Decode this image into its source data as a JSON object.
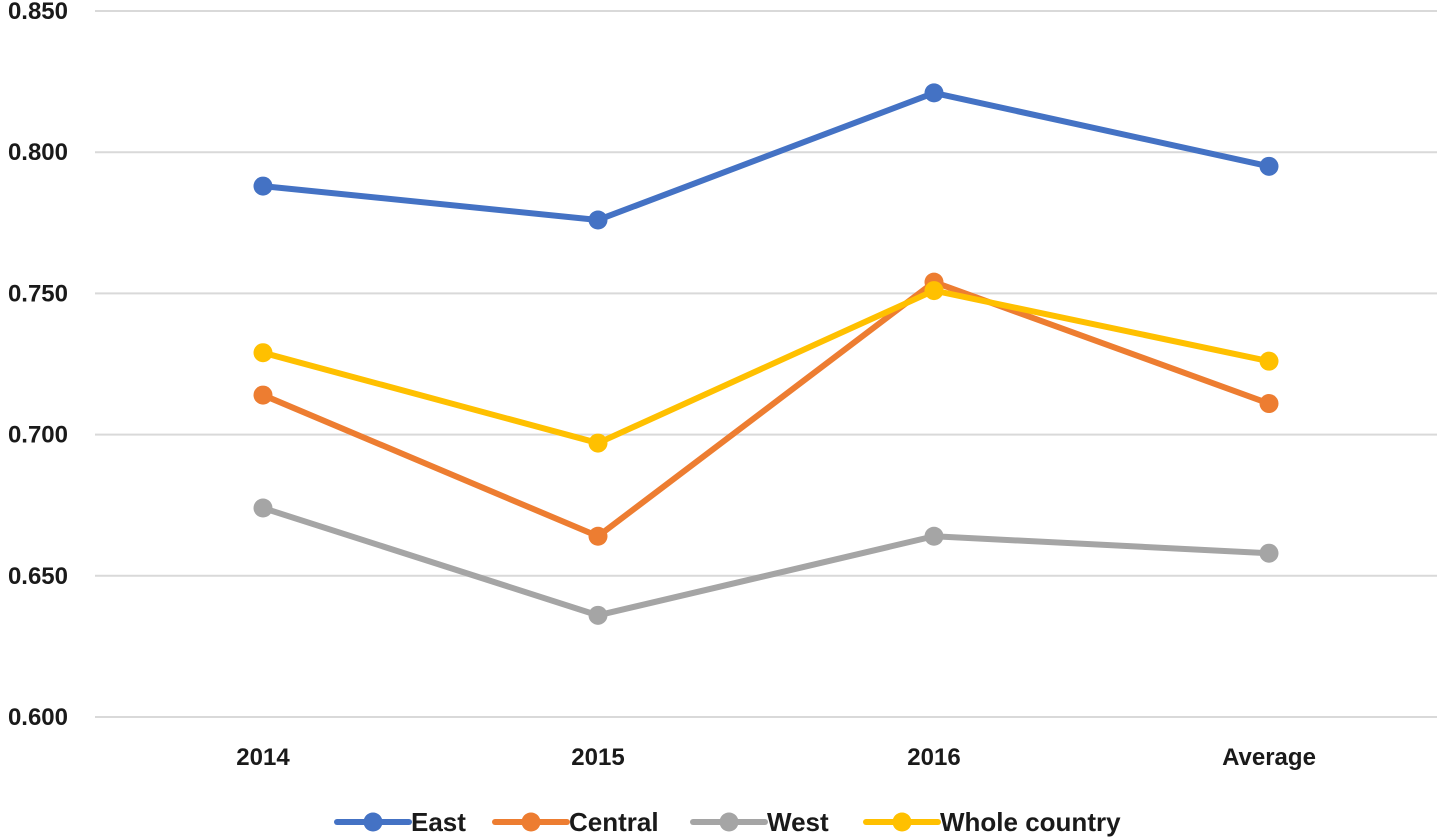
{
  "chart_data": {
    "type": "line",
    "title": "",
    "xlabel": "",
    "ylabel": "",
    "categories": [
      "2014",
      "2015",
      "2016",
      "Average"
    ],
    "ylim": [
      0.6,
      0.85
    ],
    "yticks": [
      "0.600",
      "0.650",
      "0.700",
      "0.750",
      "0.800",
      "0.850"
    ],
    "grid": true,
    "legend_position": "bottom",
    "series": [
      {
        "name": "East",
        "color": "#4472C4",
        "values": [
          0.788,
          0.776,
          0.821,
          0.795
        ]
      },
      {
        "name": "Central",
        "color": "#ED7D31",
        "values": [
          0.714,
          0.664,
          0.754,
          0.711
        ]
      },
      {
        "name": "West",
        "color": "#A5A5A5",
        "values": [
          0.674,
          0.636,
          0.664,
          0.658
        ]
      },
      {
        "name": "Whole country",
        "color": "#FFC000",
        "values": [
          0.729,
          0.697,
          0.751,
          0.726
        ]
      }
    ]
  }
}
